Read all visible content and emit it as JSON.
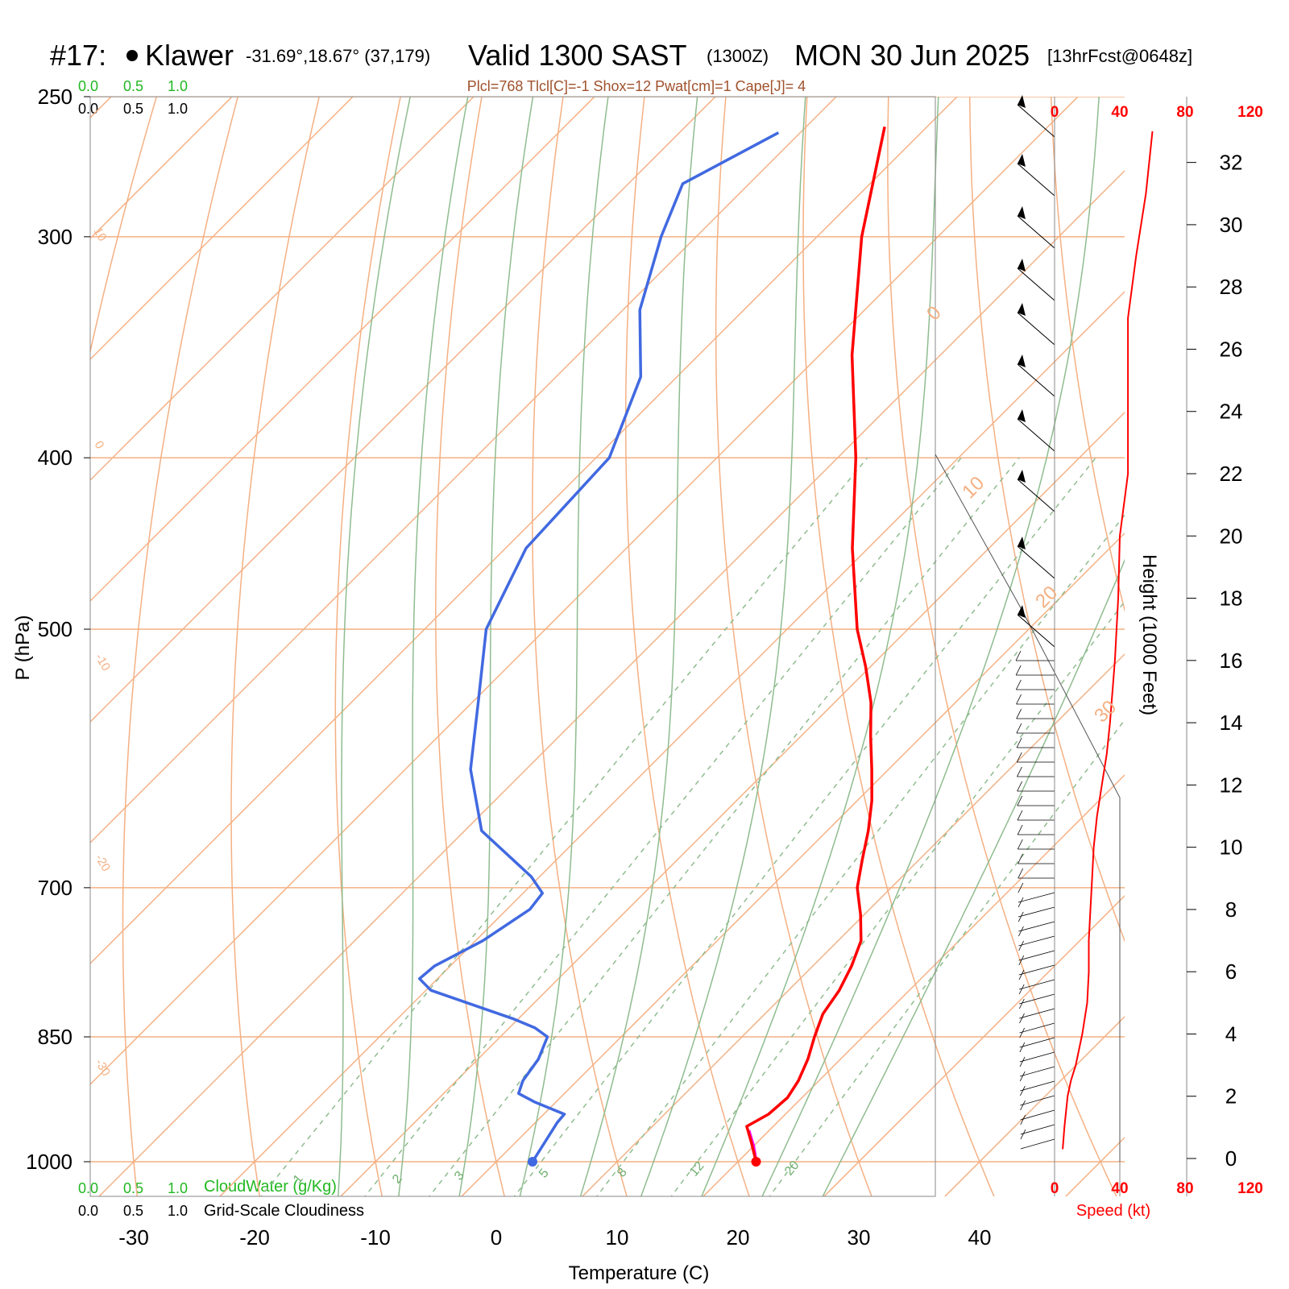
{
  "header": {
    "station_number": "#17:",
    "station_name": "Klawer",
    "coords": "-31.69°,18.67° (37,179)",
    "valid": "Valid 1300 SAST",
    "zulu": "(1300Z)",
    "date": "MON 30 Jun 2025",
    "forecast": "[13hrFcst@0648z]"
  },
  "indices": "Plcl=768 Tlcl[C]=-1 Shox=12 Pwat[cm]=1 Cape[J]= 4",
  "cloud_scale": {
    "green_values": [
      "0.0",
      "0.5",
      "1.0"
    ],
    "black_values": [
      "0.0",
      "0.5",
      "1.0"
    ],
    "green_label": "CloudWater (g/Kg)",
    "black_label": "Grid-Scale Cloudiness"
  },
  "axes": {
    "pressure_label": "P (hPa)",
    "temperature_label": "Temperature (C)",
    "height_label": "Height (1000 Feet)",
    "speed_label": "Speed (kt)",
    "pressure_ticks": [
      "250",
      "300",
      "400",
      "500",
      "700",
      "850",
      "1000"
    ],
    "temperature_ticks": [
      "-30",
      "-20",
      "-10",
      "0",
      "10",
      "20",
      "30",
      "40"
    ],
    "height_ticks": [
      "0",
      "2",
      "4",
      "6",
      "8",
      "10",
      "12",
      "14",
      "16",
      "18",
      "20",
      "22",
      "24",
      "26",
      "28",
      "30",
      "32"
    ],
    "speed_ticks": [
      "0",
      "40",
      "80",
      "120"
    ],
    "isotherm_labels": [
      "0",
      "10",
      "20",
      "30"
    ],
    "theta_labels": [
      "10",
      "0",
      "-10",
      "-20",
      "-30"
    ],
    "mixing_ratio_labels": [
      "1",
      "2",
      "3",
      "5",
      "8",
      "12",
      "20"
    ]
  },
  "colors": {
    "temperature": "#ff0000",
    "dewpoint": "#4169e1",
    "parcel": "#ff00ff",
    "isotherm": "#f4b083",
    "dry_adiabat": "#f4b083",
    "moist_adiabat": "#8fbc8f",
    "mixing_ratio": "#8fbc8f",
    "cloud_green": "#22b822",
    "index_text": "#a0522d",
    "speed": "#ff0000"
  },
  "chart_data": {
    "type": "skew-t",
    "temperature_profile": [
      {
        "p": 1000,
        "t": 21.5
      },
      {
        "p": 975,
        "t": 19.5
      },
      {
        "p": 955,
        "t": 17.8
      },
      {
        "p": 940,
        "t": 18.6
      },
      {
        "p": 920,
        "t": 18.8
      },
      {
        "p": 900,
        "t": 18.3
      },
      {
        "p": 875,
        "t": 17.3
      },
      {
        "p": 850,
        "t": 16.0
      },
      {
        "p": 825,
        "t": 14.8
      },
      {
        "p": 800,
        "t": 14.2
      },
      {
        "p": 775,
        "t": 13.2
      },
      {
        "p": 750,
        "t": 11.9
      },
      {
        "p": 725,
        "t": 9.7
      },
      {
        "p": 700,
        "t": 7.2
      },
      {
        "p": 675,
        "t": 5.3
      },
      {
        "p": 650,
        "t": 3.4
      },
      {
        "p": 625,
        "t": 1.2
      },
      {
        "p": 600,
        "t": -1.4
      },
      {
        "p": 575,
        "t": -4.2
      },
      {
        "p": 550,
        "t": -7.0
      },
      {
        "p": 525,
        "t": -10.4
      },
      {
        "p": 500,
        "t": -14.2
      },
      {
        "p": 450,
        "t": -21.3
      },
      {
        "p": 400,
        "t": -28.5
      },
      {
        "p": 350,
        "t": -37.3
      },
      {
        "p": 300,
        "t": -46.3
      },
      {
        "p": 260,
        "t": -53.5
      }
    ],
    "dewpoint_profile": [
      {
        "p": 1000,
        "td": 3.0
      },
      {
        "p": 950,
        "td": 1.8
      },
      {
        "p": 940,
        "td": 1.7
      },
      {
        "p": 925,
        "td": -1.8
      },
      {
        "p": 915,
        "td": -3.8
      },
      {
        "p": 900,
        "td": -4.5
      },
      {
        "p": 875,
        "td": -5.0
      },
      {
        "p": 850,
        "td": -6.1
      },
      {
        "p": 840,
        "td": -7.9
      },
      {
        "p": 830,
        "td": -10.5
      },
      {
        "p": 800,
        "td": -19.6
      },
      {
        "p": 788,
        "td": -21.5
      },
      {
        "p": 775,
        "td": -21.3
      },
      {
        "p": 750,
        "td": -19.4
      },
      {
        "p": 720,
        "td": -18.1
      },
      {
        "p": 705,
        "td": -18.4
      },
      {
        "p": 690,
        "td": -20.7
      },
      {
        "p": 650,
        "td": -28.6
      },
      {
        "p": 600,
        "td": -34.6
      },
      {
        "p": 550,
        "td": -39.5
      },
      {
        "p": 500,
        "td": -44.9
      },
      {
        "p": 450,
        "td": -48.3
      },
      {
        "p": 400,
        "td": -48.9
      },
      {
        "p": 360,
        "td": -53.0
      },
      {
        "p": 330,
        "td": -58.6
      },
      {
        "p": 300,
        "td": -62.9
      },
      {
        "p": 280,
        "td": -65.5
      },
      {
        "p": 262,
        "td": -61.8
      }
    ],
    "parcel_profile": [
      {
        "p": 1000,
        "t": 21.5
      },
      {
        "p": 980,
        "t": 20.0
      },
      {
        "p": 960,
        "t": 18.3
      }
    ],
    "speed_profile": [
      {
        "h": 0.3,
        "kt": 5
      },
      {
        "h": 1.0,
        "kt": 6
      },
      {
        "h": 2.0,
        "kt": 8
      },
      {
        "h": 2.5,
        "kt": 10
      },
      {
        "h": 3.0,
        "kt": 13
      },
      {
        "h": 4.0,
        "kt": 17
      },
      {
        "h": 5.0,
        "kt": 20
      },
      {
        "h": 6.0,
        "kt": 21
      },
      {
        "h": 7.0,
        "kt": 21
      },
      {
        "h": 8.0,
        "kt": 22
      },
      {
        "h": 9.0,
        "kt": 23
      },
      {
        "h": 10.0,
        "kt": 24
      },
      {
        "h": 11.0,
        "kt": 26
      },
      {
        "h": 12.0,
        "kt": 29
      },
      {
        "h": 13.0,
        "kt": 32
      },
      {
        "h": 14.0,
        "kt": 34
      },
      {
        "h": 16.0,
        "kt": 37
      },
      {
        "h": 18.0,
        "kt": 39
      },
      {
        "h": 20.0,
        "kt": 40
      },
      {
        "h": 22.0,
        "kt": 45
      },
      {
        "h": 24.0,
        "kt": 45
      },
      {
        "h": 27.0,
        "kt": 45
      },
      {
        "h": 29.0,
        "kt": 50
      },
      {
        "h": 31.0,
        "kt": 56
      },
      {
        "h": 33.0,
        "kt": 60
      }
    ],
    "xlim": [
      -33,
      36
    ],
    "ylim": [
      1050,
      250
    ],
    "height_range_kft": [
      0,
      33
    ],
    "speed_range_kt": [
      0,
      120
    ],
    "skew": "temperature isotherms skewed 45°, pressure axis logarithmic",
    "legend": "none"
  }
}
